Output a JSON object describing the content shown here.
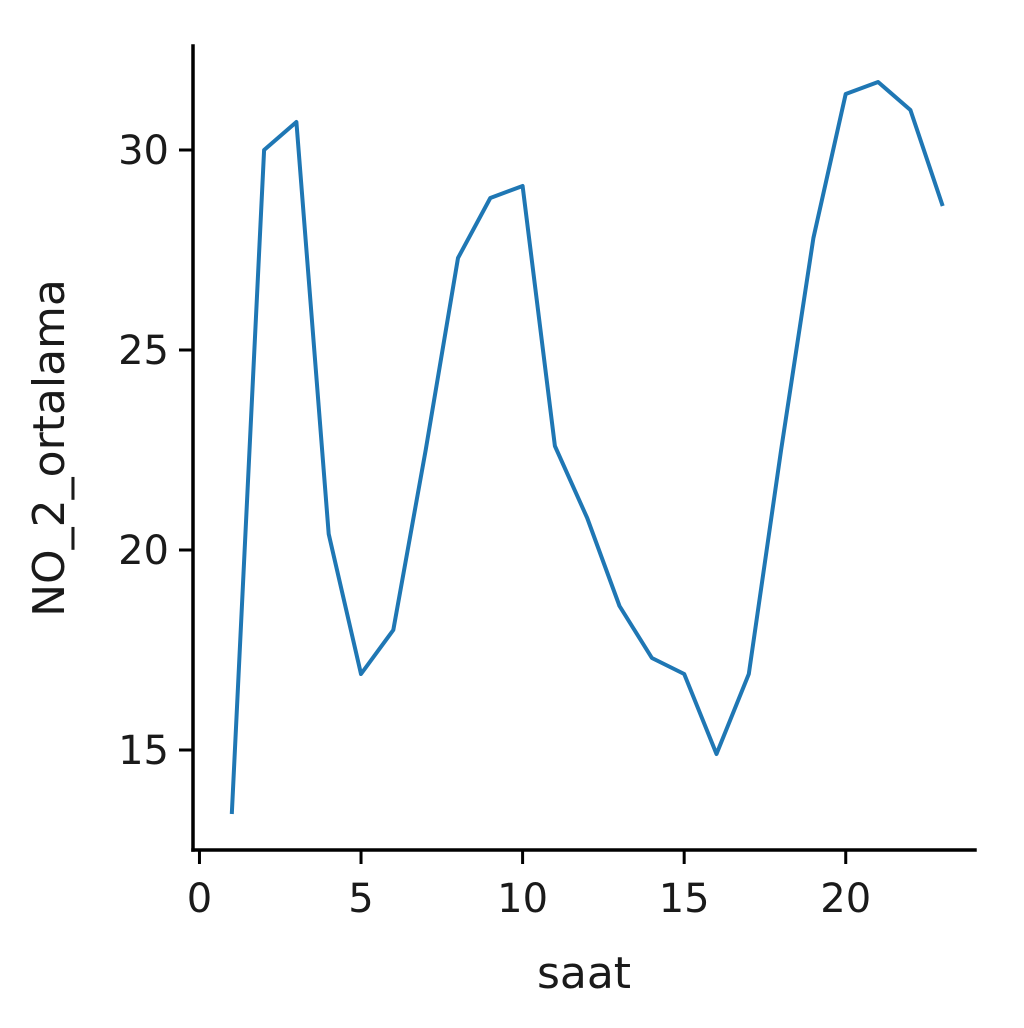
{
  "chart_data": {
    "type": "line",
    "xlabel": "saat",
    "ylabel": "NO_2_ortalama",
    "xlim": [
      -0.2,
      24.0
    ],
    "ylim": [
      12.5,
      32.6
    ],
    "x_ticks": [
      0,
      5,
      10,
      15,
      20
    ],
    "y_ticks": [
      15,
      20,
      25,
      30
    ],
    "grid": false,
    "legend": "none",
    "series": [
      {
        "color": "#1f77b4",
        "x": [
          1,
          2,
          3,
          4,
          5,
          6,
          7,
          8,
          9,
          10,
          11,
          12,
          13,
          14,
          15,
          16,
          17,
          18,
          19,
          20,
          21,
          22,
          23
        ],
        "y": [
          13.4,
          30.0,
          30.7,
          20.4,
          16.9,
          18.0,
          22.5,
          27.3,
          28.8,
          29.1,
          22.6,
          20.8,
          18.6,
          17.3,
          16.9,
          14.9,
          16.9,
          22.5,
          27.8,
          31.4,
          31.7,
          31.0,
          28.6
        ]
      }
    ]
  }
}
